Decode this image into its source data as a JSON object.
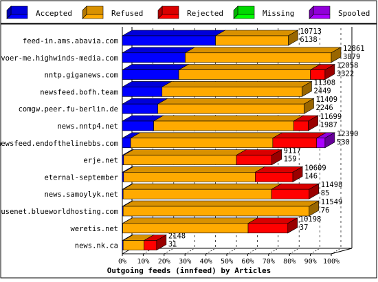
{
  "chart_data": {
    "type": "bar",
    "orientation": "horizontal",
    "stacked": true,
    "title": "Outgoing feeds (innfeed) by Articles",
    "xlim": [
      0,
      100
    ],
    "xticks": [
      "0%",
      "10%",
      "20%",
      "30%",
      "40%",
      "50%",
      "60%",
      "70%",
      "80%",
      "90%",
      "100%"
    ],
    "legend_position": "top",
    "series": [
      {
        "name": "Accepted",
        "color": "#0000ff"
      },
      {
        "name": "Refused",
        "color": "#ffaa00"
      },
      {
        "name": "Rejected",
        "color": "#ff0000"
      },
      {
        "name": "Missing",
        "color": "#00ff00"
      },
      {
        "name": "Spooled",
        "color": "#aa00ff"
      }
    ],
    "categories": [
      {
        "name": "feed-in.ams.abavia.com",
        "label_top": "10713",
        "label_bottom": "6138",
        "accepted": 44.6,
        "refused": 34.8,
        "rejected": 0,
        "missing": 0,
        "spooled": 0
      },
      {
        "name": "voer-me.highwinds-media.com",
        "label_top": "12861",
        "label_bottom": "3879",
        "accepted": 30.1,
        "refused": 69.9,
        "rejected": 0,
        "missing": 0,
        "spooled": 0
      },
      {
        "name": "nntp.giganews.com",
        "label_top": "12058",
        "label_bottom": "3322",
        "accepted": 27.0,
        "refused": 63.0,
        "rejected": 7.0,
        "missing": 0,
        "spooled": 0
      },
      {
        "name": "newsfeed.bofh.team",
        "label_top": "11308",
        "label_bottom": "2449",
        "accepted": 19.0,
        "refused": 67.0,
        "rejected": 0,
        "missing": 0,
        "spooled": 0
      },
      {
        "name": "comgw.peer.fu-berlin.de",
        "label_top": "11409",
        "label_bottom": "2246",
        "accepted": 17.0,
        "refused": 70.0,
        "rejected": 0,
        "missing": 0,
        "spooled": 0
      },
      {
        "name": "news.nntp4.net",
        "label_top": "11699",
        "label_bottom": "1987",
        "accepted": 15.0,
        "refused": 67.0,
        "rejected": 7.0,
        "missing": 0,
        "spooled": 0
      },
      {
        "name": "newsfeed.endofthelinebbs.com",
        "label_top": "12390",
        "label_bottom": "530",
        "accepted": 4.0,
        "refused": 68.0,
        "rejected": 21.0,
        "missing": 0,
        "spooled": 4.0
      },
      {
        "name": "erje.net",
        "label_top": "9117",
        "label_bottom": "159",
        "accepted": 0.6,
        "refused": 54.0,
        "rejected": 17.0,
        "missing": 0,
        "spooled": 0
      },
      {
        "name": "eternal-september",
        "label_top": "10609",
        "label_bottom": "146",
        "accepted": 0.6,
        "refused": 63.0,
        "rejected": 18.0,
        "missing": 0,
        "spooled": 0
      },
      {
        "name": "news.samoylyk.net",
        "label_top": "11498",
        "label_bottom": "85",
        "accepted": 0.4,
        "refused": 71.0,
        "rejected": 18.0,
        "missing": 0,
        "spooled": 0
      },
      {
        "name": "usenet.blueworldhosting.com",
        "label_top": "11549",
        "label_bottom": "76",
        "accepted": 0.4,
        "refused": 89.0,
        "rejected": 0,
        "missing": 0,
        "spooled": 0
      },
      {
        "name": "weretis.net",
        "label_top": "10198",
        "label_bottom": "37",
        "accepted": 0.2,
        "refused": 60.0,
        "rejected": 19.0,
        "missing": 0,
        "spooled": 0
      },
      {
        "name": "news.nk.ca",
        "label_top": "2148",
        "label_bottom": "31",
        "accepted": 0.4,
        "refused": 10.0,
        "rejected": 6.0,
        "missing": 0,
        "spooled": 0
      }
    ]
  }
}
